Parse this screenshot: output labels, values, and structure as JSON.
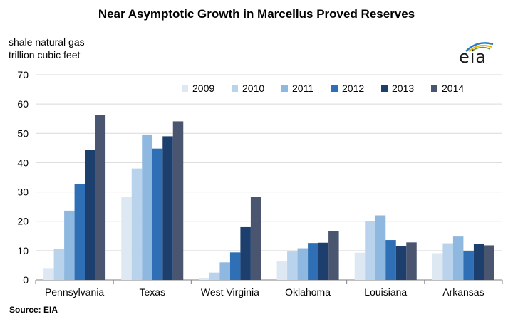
{
  "chart_data": {
    "type": "bar",
    "title": "Near Asymptotic Growth in Marcellus Proved Reserves",
    "ylabel": [
      "shale natural gas",
      "trillion cubic feet"
    ],
    "xlabel": "",
    "ylim": [
      0,
      70
    ],
    "yticks": [
      0,
      10,
      20,
      30,
      40,
      50,
      60,
      70
    ],
    "grid": true,
    "legend_position": "top-right",
    "categories": [
      "Pennsylvania",
      "Texas",
      "West Virginia",
      "Oklahoma",
      "Louisiana",
      "Arkansas"
    ],
    "series": [
      {
        "name": "2009",
        "color": "#dde8f3",
        "values": [
          3.8,
          28.2,
          0.7,
          6.3,
          9.3,
          9.1
        ]
      },
      {
        "name": "2010",
        "color": "#b8d3eb",
        "values": [
          10.7,
          38.0,
          2.5,
          9.7,
          20.1,
          12.5
        ]
      },
      {
        "name": "2011",
        "color": "#8fb8e0",
        "values": [
          23.6,
          49.6,
          6.0,
          10.8,
          22.0,
          14.8
        ]
      },
      {
        "name": "2012",
        "color": "#2e6fb5",
        "values": [
          32.7,
          44.8,
          9.4,
          12.6,
          13.6,
          9.8
        ]
      },
      {
        "name": "2013",
        "color": "#1d3f6e",
        "values": [
          44.4,
          49.0,
          18.0,
          12.7,
          11.5,
          12.3
        ]
      },
      {
        "name": "2014",
        "color": "#4a5570",
        "values": [
          56.2,
          54.1,
          28.3,
          16.7,
          12.8,
          11.8
        ]
      }
    ],
    "source": "Source: EIA"
  },
  "logo_text": "eia"
}
